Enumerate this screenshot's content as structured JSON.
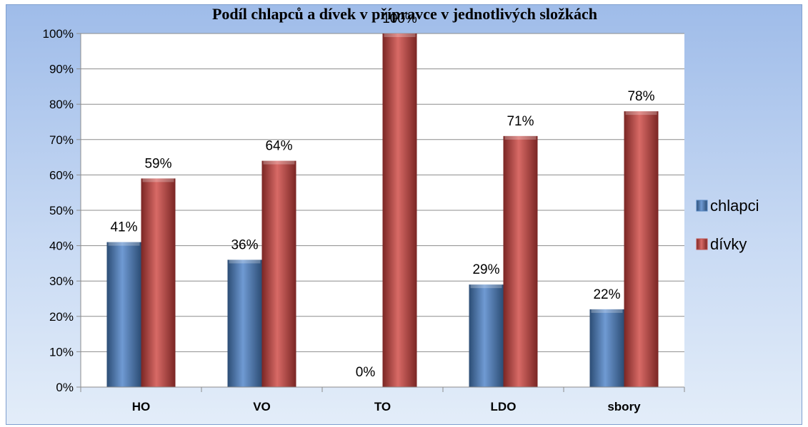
{
  "chart_data": {
    "type": "bar",
    "title": "Podíl chlapců a dívek v přípravce v jednotlivých složkách",
    "categories": [
      "HO",
      "VO",
      "TO",
      "LDO",
      "sbory"
    ],
    "series": [
      {
        "name": "chlapci",
        "values": [
          41,
          36,
          0,
          29,
          22
        ],
        "labels": [
          "41%",
          "36%",
          "0%",
          "29%",
          "22%"
        ],
        "color": "#4f81bd"
      },
      {
        "name": "dívky",
        "values": [
          59,
          64,
          100,
          71,
          78
        ],
        "labels": [
          "59%",
          "64%",
          "100%",
          "71%",
          "78%"
        ],
        "color": "#c0504d"
      }
    ],
    "y_ticks": [
      "0%",
      "10%",
      "20%",
      "30%",
      "40%",
      "50%",
      "60%",
      "70%",
      "80%",
      "90%",
      "100%"
    ],
    "ylim": [
      0,
      100
    ],
    "grid": true,
    "legend": "right"
  }
}
